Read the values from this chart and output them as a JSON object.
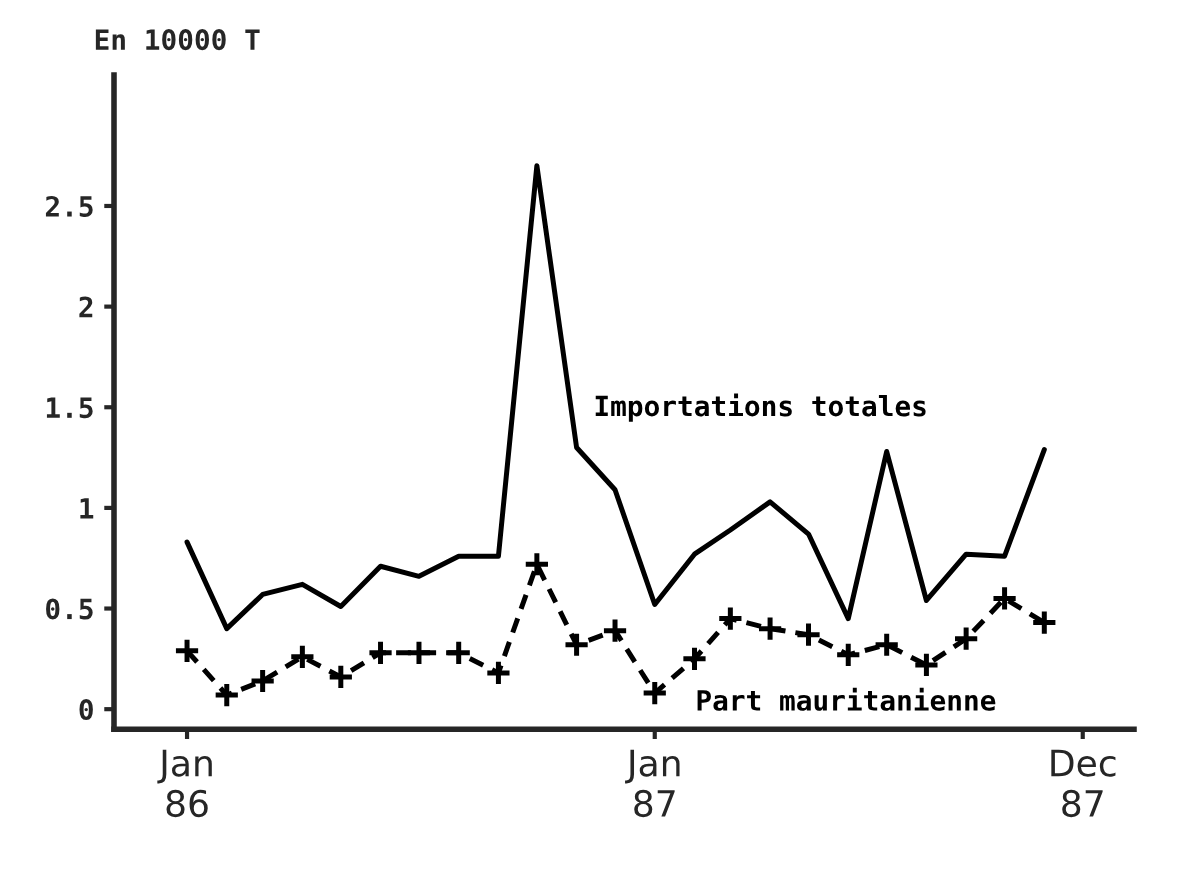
{
  "chart_data": {
    "type": "line",
    "ylabel": "En 10000 T",
    "x": [
      "1986-01",
      "1986-02",
      "1986-03",
      "1986-04",
      "1986-05",
      "1986-06",
      "1986-07",
      "1986-08",
      "1986-09",
      "1986-10",
      "1986-11",
      "1986-12",
      "1987-01",
      "1987-02",
      "1987-03",
      "1987-04",
      "1987-05",
      "1987-06",
      "1987-07",
      "1987-08",
      "1987-09",
      "1987-10",
      "1987-11"
    ],
    "series": [
      {
        "name": "Importations totales",
        "color": "#000000",
        "line_style": "solid",
        "marker": "none",
        "values": [
          0.83,
          0.4,
          0.57,
          0.62,
          0.51,
          0.71,
          0.66,
          0.76,
          0.76,
          2.7,
          1.3,
          1.09,
          0.52,
          0.77,
          0.89,
          1.03,
          0.87,
          0.45,
          1.28,
          0.54,
          0.77,
          0.76,
          1.29
        ]
      },
      {
        "name": "Part mauritanienne",
        "color": "#000000",
        "line_style": "dashed",
        "marker": "cross",
        "values": [
          0.29,
          0.07,
          0.14,
          0.26,
          0.16,
          0.28,
          0.28,
          0.28,
          0.18,
          0.72,
          0.32,
          0.39,
          0.08,
          0.25,
          0.45,
          0.4,
          0.37,
          0.27,
          0.32,
          0.22,
          0.35,
          0.55,
          0.43
        ]
      }
    ],
    "xlim": [
      "1985-11-05",
      "1988-01-10"
    ],
    "xticks": [
      {
        "value": "1986-01",
        "label": "Jan\n86"
      },
      {
        "value": "1987-01",
        "label": "Jan\n87"
      },
      {
        "value": "1987-12",
        "label": "Dec\n87"
      }
    ],
    "ylim": [
      -0.1,
      3.15
    ],
    "yticks": [
      0,
      0.5,
      1,
      1.5,
      2,
      2.5
    ],
    "grid": false,
    "legend": false
  }
}
